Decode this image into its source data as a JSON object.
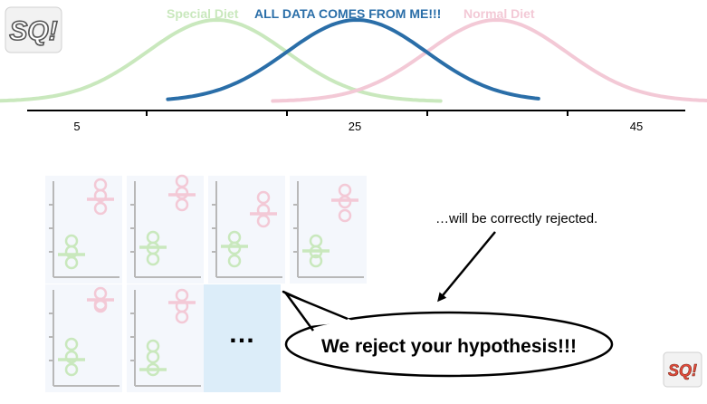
{
  "logo_text": "StatQuest",
  "curves": {
    "special": {
      "label": "Special Diet",
      "color": "#c9e8bd",
      "mean": 15
    },
    "all": {
      "label": "ALL DATA COMES FROM ME!!!",
      "color": "#2a6ea8",
      "mean": 25
    },
    "normal": {
      "label": "Normal Diet",
      "color": "#f3c9d6",
      "mean": 35
    }
  },
  "axis": {
    "ticks": [
      {
        "value": 5,
        "label": "5"
      },
      {
        "value": 25,
        "label": "25"
      },
      {
        "value": 45,
        "label": "45"
      }
    ]
  },
  "samples": {
    "green_color": "#c9e8bd",
    "pink_color": "#f3c9d6",
    "panel_background": "#f4f7fc",
    "more_label": "…",
    "more_background": "#dcedf9"
  },
  "annotation": {
    "text": "…will be correctly rejected.",
    "speech": "We reject your hypothesis!!!"
  }
}
